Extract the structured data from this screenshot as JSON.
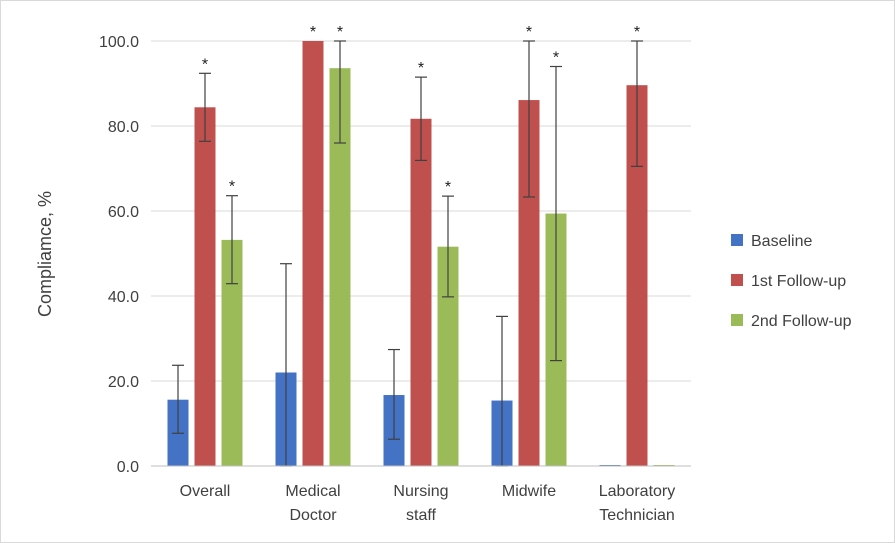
{
  "chart_data": {
    "type": "bar",
    "categories": [
      [
        "Overall"
      ],
      [
        "Medical",
        "Doctor"
      ],
      [
        "Nursing",
        "staff"
      ],
      [
        "Midwife"
      ],
      [
        "Laboratory",
        "Technician"
      ]
    ],
    "ylabel": "Compliamce, %",
    "ylim": [
      0,
      100
    ],
    "yticks": [
      0,
      20,
      40,
      60,
      80,
      100
    ],
    "ytick_labels": [
      "0.0",
      "20.0",
      "40.0",
      "60.0",
      "80.0",
      "100.0"
    ],
    "grid": true,
    "legend_position": "right",
    "series": [
      {
        "name": "Baseline",
        "color": "#4472C4",
        "values": [
          15.6,
          22.0,
          16.7,
          15.4,
          0
        ],
        "error_low": [
          7.7,
          0,
          6.3,
          0,
          null
        ],
        "error_high": [
          23.7,
          47.6,
          27.4,
          35.2,
          null
        ],
        "annotations": [
          "",
          "",
          "",
          "",
          ""
        ]
      },
      {
        "name": "1st Follow-up",
        "color": "#C0504D",
        "values": [
          84.4,
          100.0,
          81.7,
          86.1,
          89.6
        ],
        "error_low": [
          76.4,
          100.0,
          71.9,
          63.3,
          70.5
        ],
        "error_high": [
          92.4,
          100.0,
          91.5,
          100.0,
          100.0
        ],
        "annotations": [
          "*",
          "*",
          "*",
          "*",
          "*"
        ]
      },
      {
        "name": "2nd Follow-up",
        "color": "#9BBB59",
        "values": [
          53.2,
          93.6,
          51.6,
          59.4,
          0
        ],
        "error_low": [
          42.9,
          76.0,
          39.8,
          24.8,
          null
        ],
        "error_high": [
          63.6,
          100.0,
          63.5,
          94.0,
          null
        ],
        "annotations": [
          "*",
          "*",
          "*",
          "*",
          ""
        ]
      }
    ]
  }
}
